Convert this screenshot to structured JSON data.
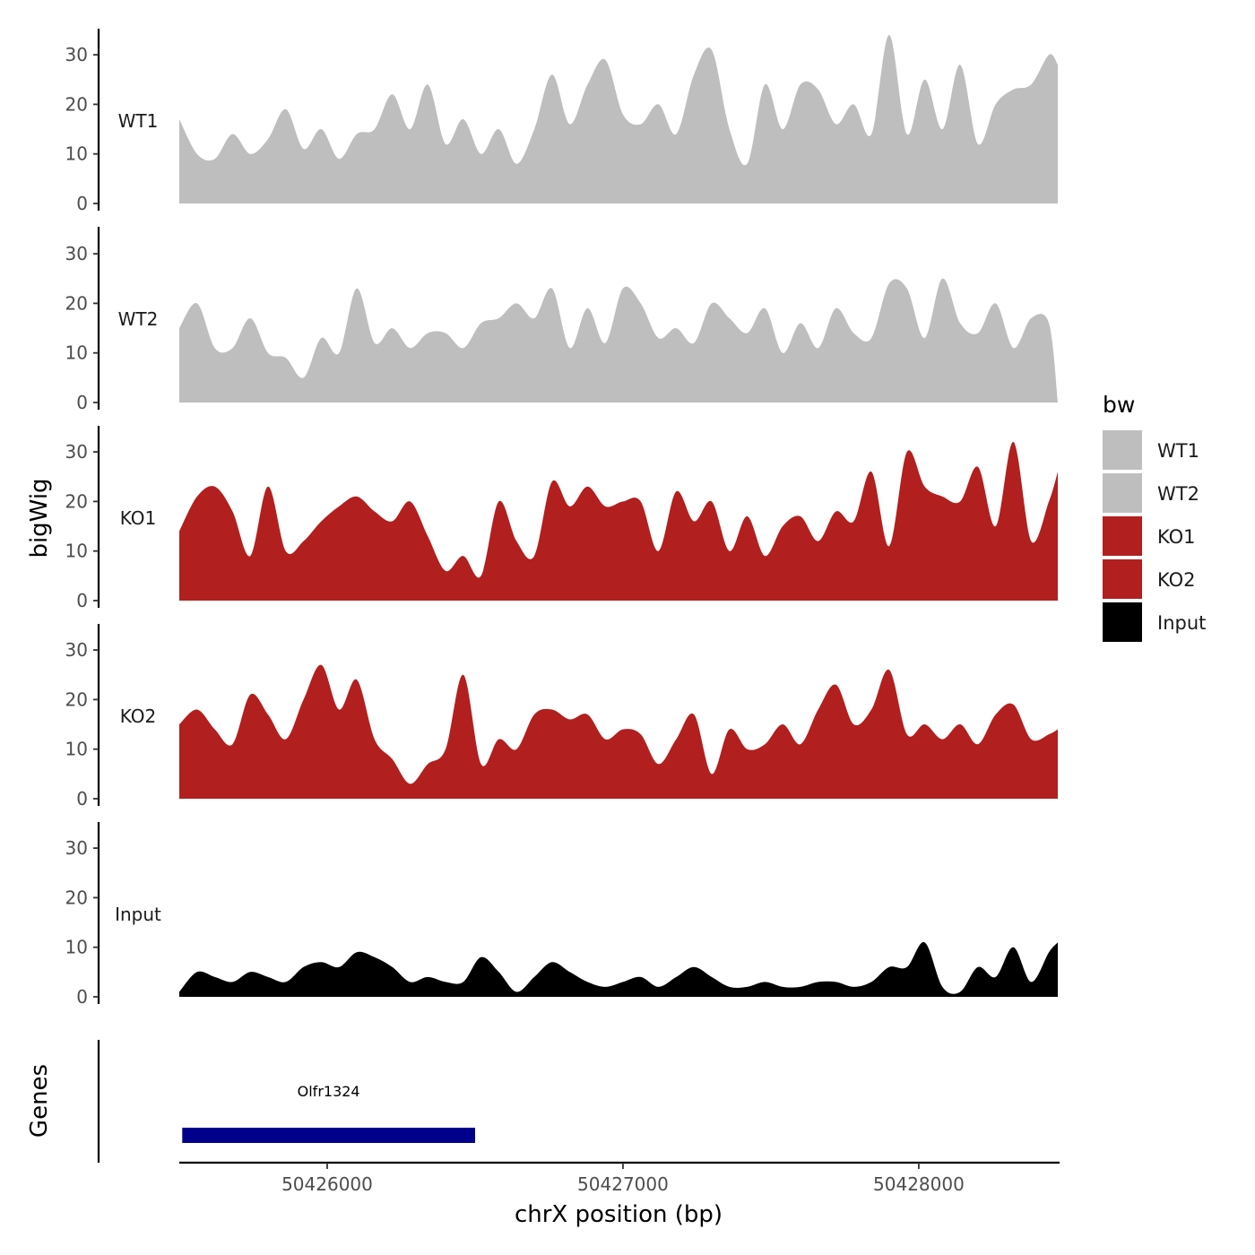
{
  "chart_data": {
    "type": "area",
    "ylabel": "bigWig",
    "xlabel": "chrX position (bp)",
    "genes_label": "Genes",
    "xlim": [
      50425500,
      50428470
    ],
    "ylim": [
      0,
      35
    ],
    "x_ticks": [
      50426000,
      50427000,
      50428000
    ],
    "x_tick_labels": [
      "50426000",
      "50427000",
      "50428000"
    ],
    "y_ticks": [
      0,
      10,
      20,
      30
    ],
    "y_tick_labels": [
      "0",
      "10",
      "20",
      "30"
    ],
    "legend": {
      "title": "bw",
      "entries": [
        {
          "name": "WT1",
          "color": "#bebebe"
        },
        {
          "name": "WT2",
          "color": "#bebebe"
        },
        {
          "name": "KO1",
          "color": "#b21f1f"
        },
        {
          "name": "KO2",
          "color": "#b21f1f"
        },
        {
          "name": "Input",
          "color": "#000000"
        }
      ]
    },
    "x": [
      50425500,
      50425560,
      50425620,
      50425680,
      50425740,
      50425800,
      50425860,
      50425920,
      50425980,
      50426040,
      50426100,
      50426160,
      50426220,
      50426280,
      50426340,
      50426400,
      50426460,
      50426520,
      50426580,
      50426640,
      50426700,
      50426760,
      50426820,
      50426880,
      50426940,
      50427000,
      50427060,
      50427120,
      50427180,
      50427240,
      50427300,
      50427360,
      50427420,
      50427480,
      50427540,
      50427600,
      50427660,
      50427720,
      50427780,
      50427840,
      50427900,
      50427960,
      50428020,
      50428080,
      50428140,
      50428200,
      50428260,
      50428320,
      50428380,
      50428440,
      50428470
    ],
    "series": [
      {
        "name": "WT1",
        "color": "#bebebe",
        "values": [
          17,
          10,
          9,
          14,
          10,
          13,
          19,
          11,
          15,
          9,
          14,
          15,
          22,
          15,
          24,
          12,
          17,
          10,
          15,
          8,
          15,
          26,
          16,
          24,
          29,
          18,
          16,
          20,
          14,
          26,
          31,
          15,
          8,
          24,
          15,
          24,
          23,
          16,
          20,
          14,
          34,
          14,
          25,
          15,
          28,
          12,
          20,
          23,
          24,
          30,
          28
        ]
      },
      {
        "name": "WT2",
        "color": "#bebebe",
        "values": [
          15,
          20,
          11,
          11,
          17,
          10,
          9,
          5,
          13,
          10,
          23,
          12,
          15,
          11,
          14,
          14,
          11,
          16,
          17,
          20,
          17,
          23,
          11,
          19,
          12,
          23,
          20,
          13,
          15,
          12,
          20,
          17,
          14,
          19,
          10,
          16,
          11,
          19,
          14,
          13,
          24,
          23,
          13,
          25,
          16,
          14,
          20,
          11,
          17,
          16,
          0
        ]
      },
      {
        "name": "KO1",
        "color": "#b21f1f",
        "values": [
          14,
          21,
          23,
          18,
          9,
          23,
          10,
          12,
          16,
          19,
          21,
          18,
          16,
          20,
          13,
          6,
          9,
          5,
          20,
          12,
          9,
          24,
          19,
          23,
          19,
          20,
          20,
          10,
          22,
          16,
          20,
          10,
          17,
          9,
          15,
          17,
          12,
          18,
          16,
          26,
          11,
          30,
          23,
          21,
          20,
          27,
          15,
          32,
          12,
          20,
          26
        ]
      },
      {
        "name": "KO2",
        "color": "#b21f1f",
        "values": [
          15,
          18,
          14,
          11,
          21,
          17,
          12,
          20,
          27,
          18,
          24,
          12,
          8,
          3,
          7,
          10,
          25,
          7,
          12,
          10,
          17,
          18,
          16,
          17,
          12,
          14,
          13,
          7,
          12,
          17,
          5,
          14,
          10,
          11,
          15,
          11,
          18,
          23,
          15,
          18,
          26,
          13,
          15,
          12,
          15,
          11,
          17,
          19,
          12,
          13,
          14
        ]
      },
      {
        "name": "Input",
        "color": "#000000",
        "values": [
          1,
          5,
          4,
          3,
          5,
          4,
          3,
          6,
          7,
          6,
          9,
          8,
          6,
          3,
          4,
          3,
          3,
          8,
          5,
          1,
          4,
          7,
          5,
          3,
          2,
          3,
          4,
          2,
          4,
          6,
          4,
          2,
          2,
          3,
          2,
          2,
          3,
          3,
          2,
          3,
          6,
          6,
          11,
          2,
          1,
          6,
          4,
          10,
          3,
          9,
          11
        ]
      }
    ],
    "genes": [
      {
        "name": "Olfr1324",
        "start": 50425510,
        "end": 50426500,
        "color": "#00008b"
      }
    ]
  }
}
